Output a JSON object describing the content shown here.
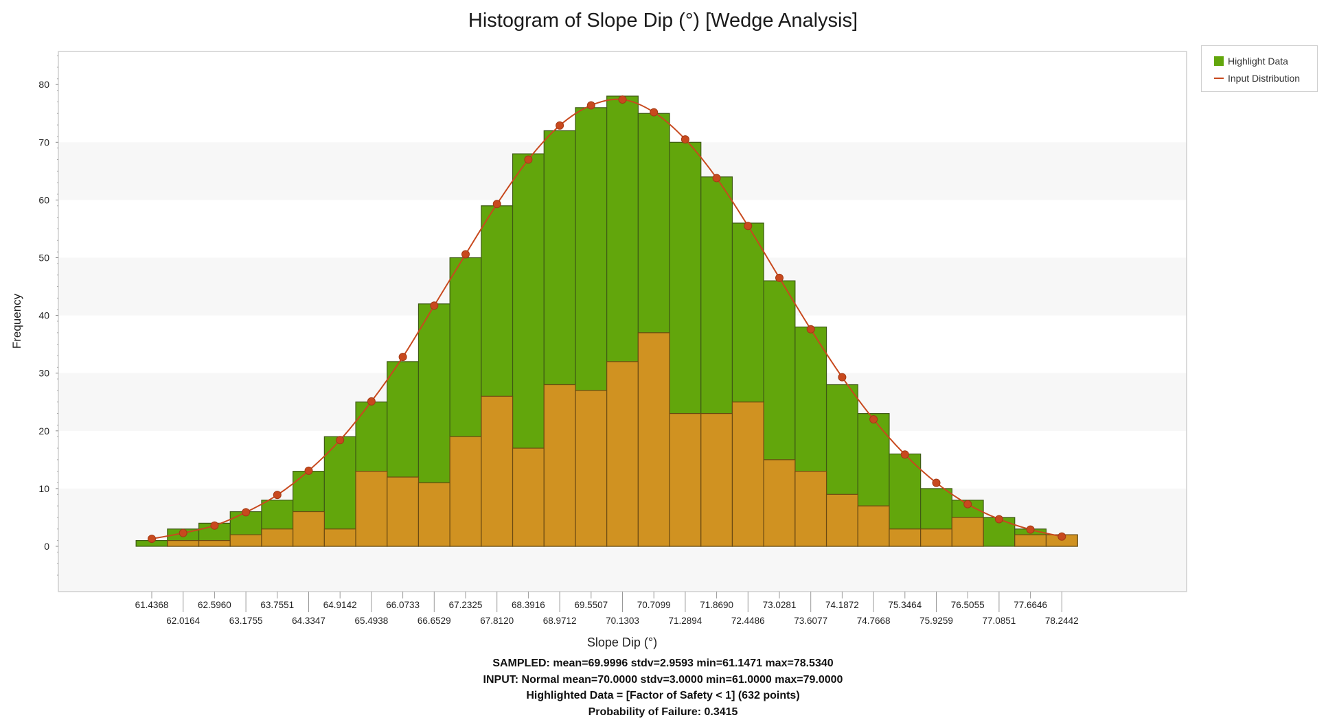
{
  "chart_data": {
    "type": "bar",
    "title": "Histogram of Slope Dip (°) [Wedge Analysis]",
    "xlabel": "Slope Dip (°)",
    "ylabel": "Frequency",
    "ylim": [
      -8,
      86
    ],
    "yticks": [
      0,
      10,
      20,
      30,
      40,
      50,
      60,
      70,
      80
    ],
    "bin_centers": [
      61.4368,
      62.0164,
      62.596,
      63.1755,
      63.7551,
      64.3347,
      64.9142,
      65.4938,
      66.0733,
      66.6529,
      67.2325,
      67.812,
      68.3916,
      68.9712,
      69.5507,
      70.1303,
      70.7099,
      71.2894,
      71.869,
      72.4486,
      73.0281,
      73.6077,
      74.1872,
      74.7668,
      75.3464,
      75.9259,
      76.5055,
      77.0851,
      77.6646,
      78.2442
    ],
    "tick_labels": [
      "61.4368",
      "62.0164",
      "62.5960",
      "63.1755",
      "63.7551",
      "64.3347",
      "64.9142",
      "65.4938",
      "66.0733",
      "66.6529",
      "67.2325",
      "67.8120",
      "68.3916",
      "68.9712",
      "69.5507",
      "70.1303",
      "70.7099",
      "71.2894",
      "71.8690",
      "72.4486",
      "73.0281",
      "73.6077",
      "74.1872",
      "74.7668",
      "75.3464",
      "75.9259",
      "76.5055",
      "77.0851",
      "77.6646",
      "78.2442"
    ],
    "series": [
      {
        "name": "Highlight Data",
        "color": "#62a60c",
        "values": [
          1,
          3,
          4,
          6,
          8,
          13,
          19,
          25,
          32,
          42,
          50,
          59,
          68,
          72,
          76,
          78,
          75,
          70,
          64,
          56,
          46,
          38,
          28,
          23,
          16,
          10,
          8,
          5,
          3,
          2
        ]
      },
      {
        "name": "",
        "color": "#d09221",
        "values": [
          0,
          1,
          1,
          2,
          3,
          6,
          3,
          13,
          12,
          11,
          19,
          26,
          17,
          28,
          27,
          32,
          37,
          23,
          23,
          25,
          15,
          13,
          9,
          7,
          3,
          3,
          5,
          0,
          2,
          2
        ]
      },
      {
        "name": "Input Distribution",
        "color": "#c8491e",
        "type": "line",
        "values": [
          1.3,
          2.3,
          3.6,
          5.9,
          8.9,
          13.1,
          18.4,
          25.1,
          32.8,
          41.7,
          50.6,
          59.3,
          67.0,
          72.9,
          76.4,
          77.4,
          75.2,
          70.5,
          63.8,
          55.5,
          46.5,
          37.6,
          29.3,
          22.0,
          15.9,
          11.0,
          7.3,
          4.7,
          2.9,
          1.7
        ]
      }
    ],
    "grid": "alternating horizontal bands",
    "legend_position": "top-right"
  },
  "legend": {
    "items": [
      "Highlight Data",
      "Input Distribution"
    ]
  },
  "stats": {
    "sampled": "SAMPLED: mean=69.9996 stdv=2.9593 min=61.1471 max=78.5340",
    "input": "INPUT: Normal mean=70.0000 stdv=3.0000 min=61.0000 max=79.0000",
    "highlighted": "Highlighted Data = [Factor of Safety < 1] (632 points)",
    "pof": "Probability of Failure: 0.3415"
  }
}
